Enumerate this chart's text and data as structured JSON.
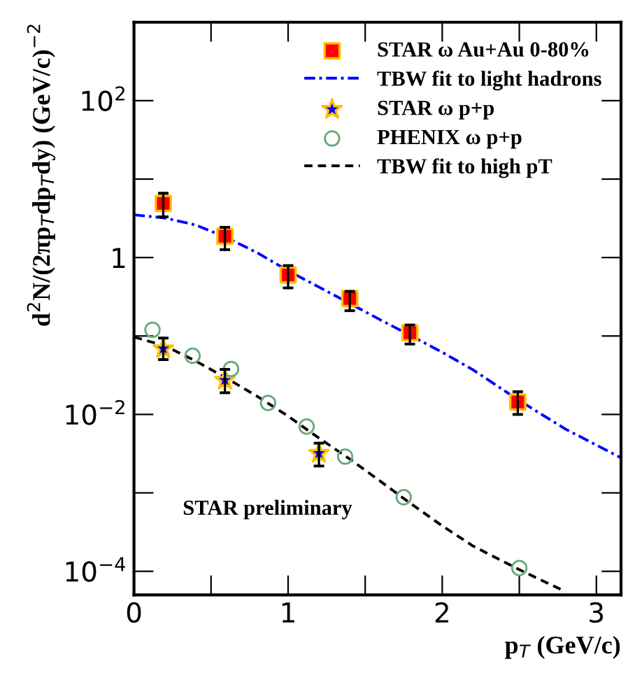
{
  "chart_data": {
    "type": "scatter",
    "xlabel": "p$_{T}$ (GeV/c)",
    "ylabel": "d$^{2}$N/(2πp$_{T}$dp$_{T}$dy) (GeV/c)$^{−2}$",
    "log": "y",
    "xlim": [
      0,
      3.16
    ],
    "ylim": [
      5e-05,
      1000
    ],
    "xticks": [
      0,
      {
        "value": 0.5,
        "label": null
      },
      1,
      {
        "value": 1.5,
        "label": null
      },
      2,
      {
        "value": 2.5,
        "label": null
      },
      3
    ],
    "yticks": [
      {
        "value": 0.0001,
        "label": "10$^{−4}$"
      },
      {
        "value": 0.001,
        "label": null
      },
      {
        "value": 0.01,
        "label": "10$^{−2}$"
      },
      {
        "value": 0.1,
        "label": null
      },
      1,
      {
        "value": 10,
        "label": null
      },
      {
        "value": 100,
        "label": "10$^{2}$"
      }
    ],
    "grid": false,
    "legend": "top right",
    "annotations": [
      "STAR preliminary"
    ],
    "series": [
      {
        "name": "STAR ω Au+Au 0-80%",
        "marker": "square",
        "color": "#ff0000",
        "x": [
          0.19,
          0.59,
          1.0,
          1.4,
          1.79,
          2.49
        ],
        "values": [
          4.9,
          1.87,
          0.6,
          0.3,
          0.11,
          0.0144
        ],
        "errors": [
          [
            3.3,
            6.6
          ],
          [
            1.26,
            2.43
          ],
          [
            0.41,
            0.79
          ],
          [
            0.21,
            0.37
          ],
          [
            0.079,
            0.138
          ],
          [
            0.01,
            0.0195
          ]
        ]
      },
      {
        "name": "TBW fit to light hadrons",
        "type": "line",
        "line_style": "dashdot",
        "color": "#0000ff",
        "x": [
          0,
          0.2,
          0.4,
          0.6,
          0.8,
          1.0,
          1.2,
          1.4,
          1.6,
          1.8,
          2.0,
          2.2,
          2.5,
          2.8,
          3.16
        ],
        "values": [
          3.5,
          3.2,
          2.6,
          1.8,
          1.15,
          0.68,
          0.42,
          0.26,
          0.16,
          0.1,
          0.062,
          0.037,
          0.015,
          0.0065,
          0.0028
        ]
      },
      {
        "name": "STAR ω p+p",
        "marker": "star",
        "color": "#0000ff",
        "x": [
          0.19,
          0.59,
          1.2
        ],
        "values": [
          0.069,
          0.0274,
          0.0032
        ],
        "errors": [
          [
            0.05,
            0.094
          ],
          [
            0.0189,
            0.0375
          ],
          [
            0.0022,
            0.0043
          ]
        ]
      },
      {
        "name": "PHENIX ω p+p",
        "marker": "circle",
        "color": "#6aa87a",
        "x": [
          0.12,
          0.38,
          0.63,
          0.87,
          1.12,
          1.37,
          1.75,
          2.5
        ],
        "values": [
          0.12,
          0.056,
          0.038,
          0.014,
          0.007,
          0.0029,
          0.00088,
          0.00011
        ]
      },
      {
        "name": "TBW fit to high pT",
        "type": "line",
        "line_style": "dashed",
        "color": "#000000",
        "x": [
          0,
          0.2,
          0.4,
          0.6,
          0.8,
          1.0,
          1.2,
          1.4,
          1.6,
          1.8,
          2.0,
          2.2,
          2.5,
          2.8
        ],
        "values": [
          0.097,
          0.075,
          0.048,
          0.029,
          0.017,
          0.0095,
          0.005,
          0.0027,
          0.0014,
          0.00072,
          0.00038,
          0.00021,
          0.000105,
          5.5e-05
        ]
      }
    ]
  }
}
